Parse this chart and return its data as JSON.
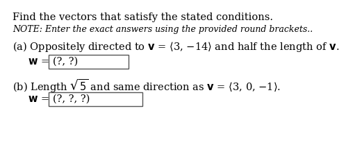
{
  "title": "Find the vectors that satisfy the stated conditions.",
  "note": "NOTE: Enter the exact answers using the provided round brackets..",
  "part_a_text": "(a) Oppositely directed to $\\mathbf{v}$ = $\\langle$3, $-$14$\\rangle$ and half the length of $\\mathbf{v}$.",
  "part_a_w": "$\\mathbf{w}$ = ",
  "part_a_answer": "(?, ?)",
  "part_b_text": "(b) Length $\\sqrt{5}$ and same direction as $\\mathbf{v}$ = $\\langle$3, 0, $-$1$\\rangle$.",
  "part_b_w": "$\\mathbf{w}$ = ",
  "part_b_answer": "(?, ?, ?)",
  "bg_color": "#ffffff",
  "text_color": "#000000",
  "box_color": "#555555",
  "font_size_title": 10.5,
  "font_size_note": 9.0,
  "font_size_body": 10.5
}
